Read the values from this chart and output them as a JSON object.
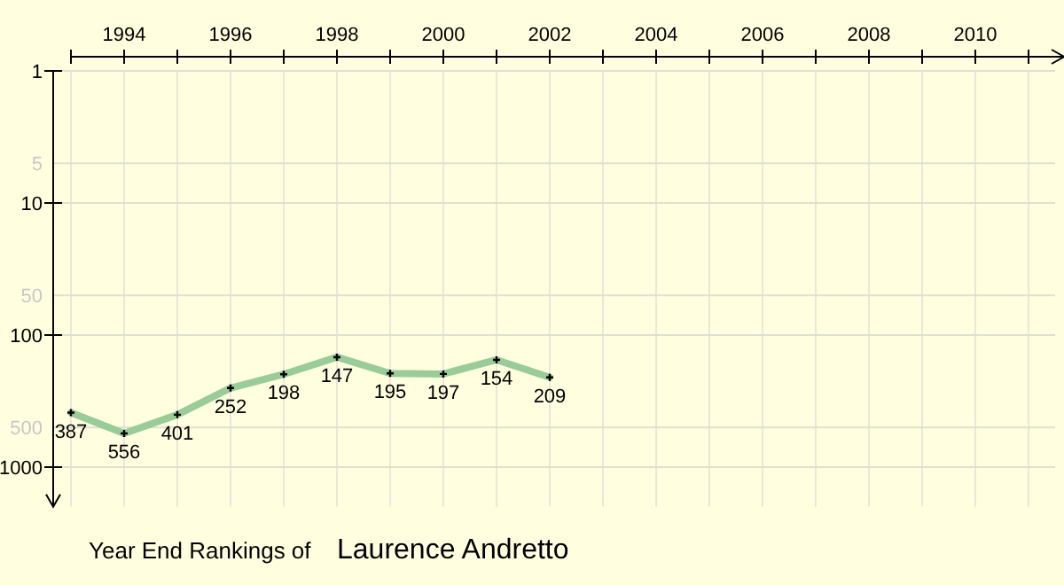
{
  "chart_data": {
    "type": "line",
    "title": "Year End Rankings of",
    "subtitle": "Laurence Andretto",
    "x": [
      1993,
      1994,
      1995,
      1996,
      1997,
      1998,
      1999,
      2000,
      2001,
      2002
    ],
    "series": [
      {
        "color": "#99cc99",
        "values": [
          387,
          556,
          401,
          252,
          198,
          147,
          195,
          197,
          154,
          209
        ]
      }
    ],
    "xlim": [
      1993,
      2011.5
    ],
    "xticks": [
      {
        "value": 1993,
        "label": null
      },
      1994,
      {
        "value": 1995,
        "label": null
      },
      1996,
      {
        "value": 1997,
        "label": null
      },
      1998,
      {
        "value": 1999,
        "label": null
      },
      2000,
      {
        "value": 2001,
        "label": null
      },
      2002,
      {
        "value": 2003,
        "label": null
      },
      2004,
      {
        "value": 2005,
        "label": null
      },
      2006,
      {
        "value": 2007,
        "label": null
      },
      2008,
      {
        "value": 2009,
        "label": null
      },
      2010,
      {
        "value": 2011,
        "label": null
      }
    ],
    "ylim": [
      2000,
      1
    ],
    "yticks": [
      1,
      5,
      10,
      50,
      100,
      500,
      1000
    ],
    "log": true,
    "grid": true,
    "marker": "cross",
    "line_style": "solid",
    "data_labels": true
  }
}
